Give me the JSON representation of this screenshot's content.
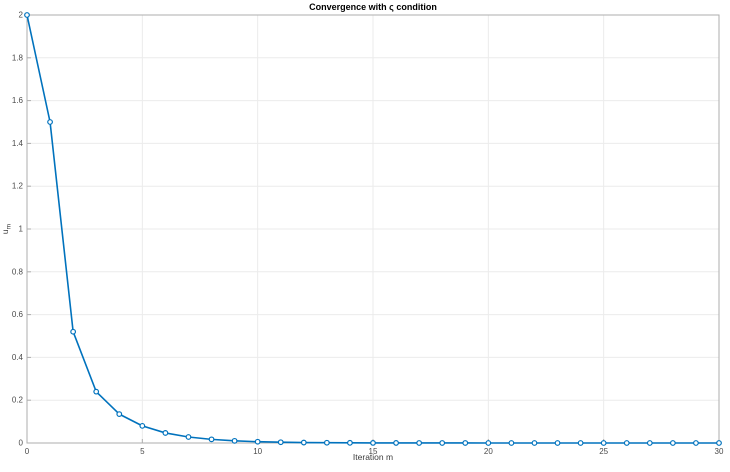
{
  "figure": {
    "background": "#ffffff"
  },
  "chart_data": {
    "type": "line",
    "title": "Convergence with ς condition",
    "xlabel": "Iteration m",
    "ylabel": "u_m",
    "xlim": [
      0,
      30
    ],
    "ylim": [
      0,
      2
    ],
    "xticks": [
      0,
      5,
      10,
      15,
      20,
      25,
      30
    ],
    "yticks": [
      0,
      0.2,
      0.4,
      0.6,
      0.8,
      1,
      1.2,
      1.4,
      1.6,
      1.8,
      2
    ],
    "grid": true,
    "box": true,
    "legend": "none",
    "line_color": "#0072BD",
    "marker": "o",
    "marker_fill": "#ffffff",
    "grid_color": "#ebebeb",
    "axis_color": "#aeaeae",
    "tick_label_color": "#4a4a4a",
    "series": [
      {
        "name": "u_m",
        "x": [
          0,
          1,
          2,
          3,
          4,
          5,
          6,
          7,
          8,
          9,
          10,
          11,
          12,
          13,
          14,
          15,
          16,
          17,
          18,
          19,
          20,
          21,
          22,
          23,
          24,
          25,
          26,
          27,
          28,
          29,
          30
        ],
        "y": [
          2,
          1.5,
          0.52,
          0.24,
          0.135,
          0.08,
          0.047,
          0.028,
          0.017,
          0.01,
          0.006,
          0.0036,
          0.0021,
          0.0013,
          0.0008,
          0.0005,
          0.0003,
          0.00017,
          0.0001,
          6e-05,
          4e-05,
          2e-05,
          1.3e-05,
          8e-06,
          5e-06,
          3e-06,
          2e-06,
          1e-06,
          6e-07,
          4e-07,
          2e-07
        ]
      }
    ]
  }
}
